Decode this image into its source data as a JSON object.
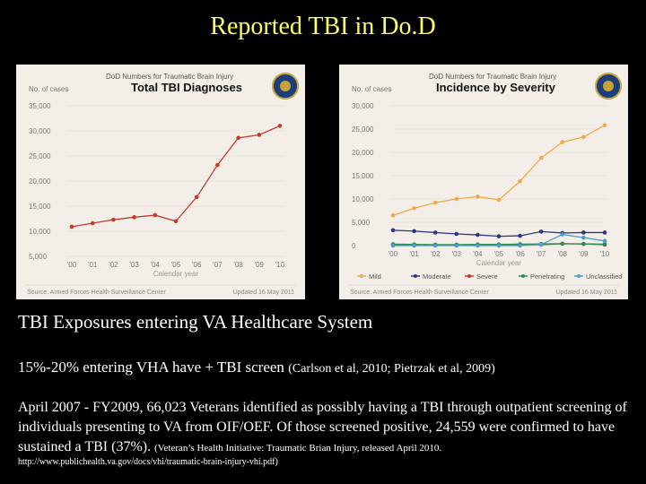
{
  "slide": {
    "title": "Reported TBI in Do.D"
  },
  "section": {
    "heading": "TBI Exposures entering VA Healthcare System",
    "line1_main": "15%-20%  entering VHA have + TBI screen ",
    "line1_cite": "(Carlson  et al, 2010; Pietrzak et al, 2009)",
    "para_main": "April 2007 - FY2009, 66,023 Veterans identified as possibly having a TBI through outpatient screening of individuals presenting to VA from OIF/OEF. Of those screened positive, 24,559 were confirmed to have sustained a TBI (37%). ",
    "para_cite": "(Veteran’s Health Initiative: Traumatic Brian Injury, released April 2010.",
    "url": "http://www.publichealth.va.gov/docs/vhi/traumatic-brain-injury-vhi.pdf)"
  },
  "colors": {
    "title": "#ffff66",
    "panel_bg": "#f3efe8"
  },
  "chart_data": [
    {
      "type": "line",
      "header": "DoD Numbers for Traumatic Brain Injury",
      "title": "Total TBI Diagnoses",
      "ylabel": "No. of cases",
      "xlabel": "Calendar year",
      "categories": [
        "'00",
        "'01",
        "'02",
        "'03",
        "'04",
        "'05",
        "'06",
        "'07",
        "'08",
        "'09",
        "'10"
      ],
      "y_ticks": [
        "5,000",
        "10,000",
        "15,000",
        "20,000",
        "25,000",
        "30,000",
        "35,000"
      ],
      "ylim": [
        5000,
        35000
      ],
      "series": [
        {
          "color": "#c43a2f",
          "values": [
            10900,
            11600,
            12300,
            12800,
            13200,
            12000,
            16800,
            23200,
            28600,
            29200,
            31000
          ]
        }
      ],
      "source": "Source: Armed Forces Health Surveillance Center",
      "updated": "Updated 16 May 2011"
    },
    {
      "type": "line",
      "header": "DoD Numbers for Traumatic Brain Injury",
      "title": "Incidence by Severity",
      "ylabel": "No. of cases",
      "xlabel": "Calendar year",
      "categories": [
        "'00",
        "'01",
        "'02",
        "'03",
        "'04",
        "'05",
        "'06",
        "'07",
        "'08",
        "'09",
        "'10"
      ],
      "y_ticks": [
        "0",
        "5,000",
        "10,000",
        "15,000",
        "20,000",
        "25,000",
        "30,000"
      ],
      "ylim": [
        0,
        30000
      ],
      "series": [
        {
          "name": "Mild",
          "color": "#f0a84a",
          "values": [
            6500,
            8000,
            9200,
            10000,
            10500,
            9800,
            13800,
            18800,
            22200,
            23300,
            25800
          ]
        },
        {
          "name": "Moderate",
          "color": "#2e3680",
          "values": [
            3300,
            3100,
            2800,
            2500,
            2300,
            2000,
            2100,
            3000,
            2700,
            2800,
            2800
          ]
        },
        {
          "name": "Severe",
          "color": "#c43a2f",
          "values": [
            150,
            150,
            150,
            150,
            150,
            150,
            150,
            200,
            400,
            350,
            200
          ]
        },
        {
          "name": "Penetrating",
          "color": "#2e8b57",
          "values": [
            300,
            250,
            200,
            200,
            250,
            250,
            300,
            350,
            400,
            350,
            300
          ]
        },
        {
          "name": "Unclassified",
          "color": "#4a9ec8",
          "values": [
            0,
            0,
            0,
            0,
            0,
            0,
            0,
            200,
            2400,
            1700,
            1000
          ]
        }
      ],
      "source": "Source: Armed Forces Health Surveillance Center",
      "updated": "Updated 16 May 2011"
    }
  ]
}
